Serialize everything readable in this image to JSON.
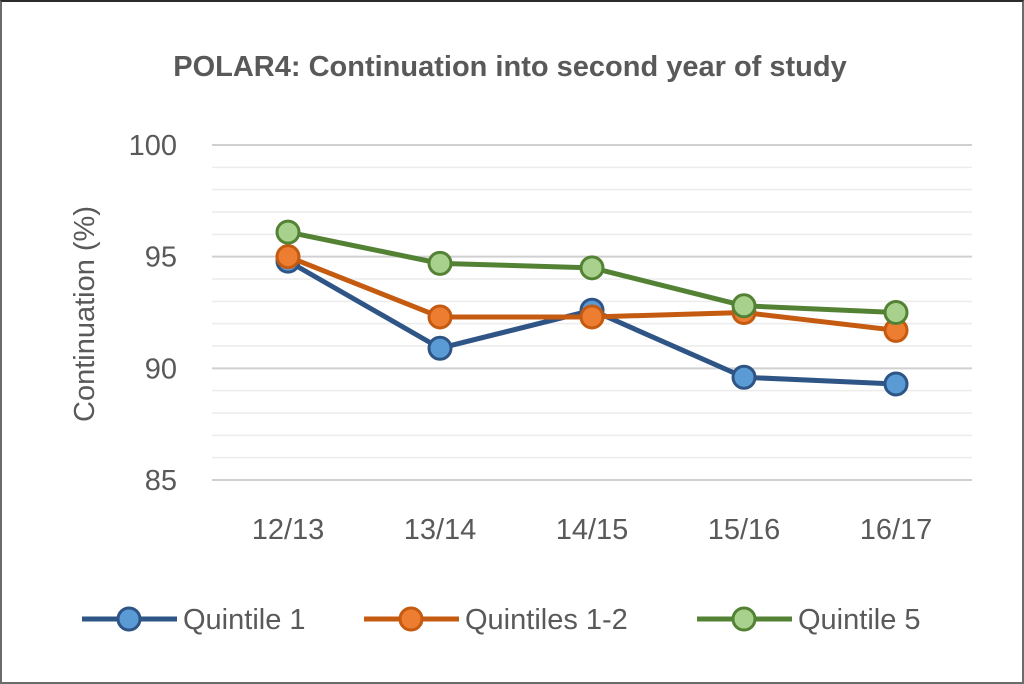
{
  "chart_data": {
    "type": "line",
    "title": "POLAR4: Continuation into second year of study",
    "xlabel": "",
    "ylabel": "Continuation (%)",
    "categories": [
      "12/13",
      "13/14",
      "14/15",
      "15/16",
      "16/17"
    ],
    "ylim": [
      85,
      100
    ],
    "yticks": [
      85,
      90,
      95,
      100
    ],
    "minor_gridlines": true,
    "legend_position": "bottom",
    "series": [
      {
        "name": "Quintile 1",
        "values": [
          94.8,
          90.9,
          92.6,
          89.6,
          89.3
        ],
        "line_color": "#2e5585",
        "marker_color": "#5b9bd5"
      },
      {
        "name": "Quintiles 1-2",
        "values": [
          95.0,
          92.3,
          92.3,
          92.5,
          91.7
        ],
        "line_color": "#c55a11",
        "marker_color": "#ed7d31"
      },
      {
        "name": "Quintile 5",
        "values": [
          96.1,
          94.7,
          94.5,
          92.8,
          92.5
        ],
        "line_color": "#548235",
        "marker_color": "#a9d18e"
      }
    ]
  }
}
